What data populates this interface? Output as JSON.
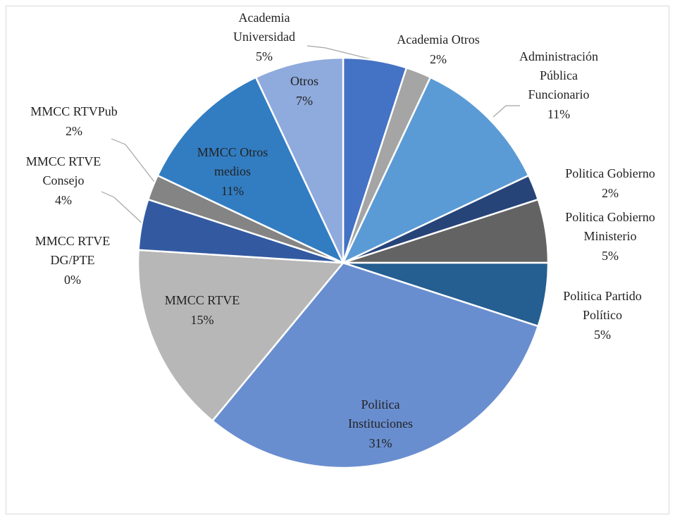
{
  "chart_data": {
    "type": "pie",
    "categories": [
      "Academia\nUniversidad",
      "Academia Otros",
      "Administración\nPública\nFuncionario",
      "Politica Gobierno",
      "Politica Gobierno\nMinisterio",
      "Politica Partido\nPolítico",
      "Politica\nInstituciones",
      "MMCC RTVE",
      "MMCC RTVE\nDG/PTE",
      "MMCC RTVE\nConsejo",
      "MMCC RTVPub",
      "MMCC Otros\nmedios",
      "Otros"
    ],
    "values": [
      5,
      2,
      11,
      2,
      5,
      5,
      31,
      15,
      0,
      4,
      2,
      11,
      7
    ],
    "value_labels": [
      "5%",
      "2%",
      "11%",
      "2%",
      "5%",
      "5%",
      "31%",
      "15%",
      "0%",
      "4%",
      "2%",
      "11%",
      "7%"
    ],
    "colors": [
      "#4472c4",
      "#a5a5a5",
      "#5b9bd5",
      "#264478",
      "#636363",
      "#255e91",
      "#698ed0",
      "#b7b7b7",
      "#7f7f7f",
      "#335aa1",
      "#848484",
      "#327dc2",
      "#8faadc"
    ]
  }
}
